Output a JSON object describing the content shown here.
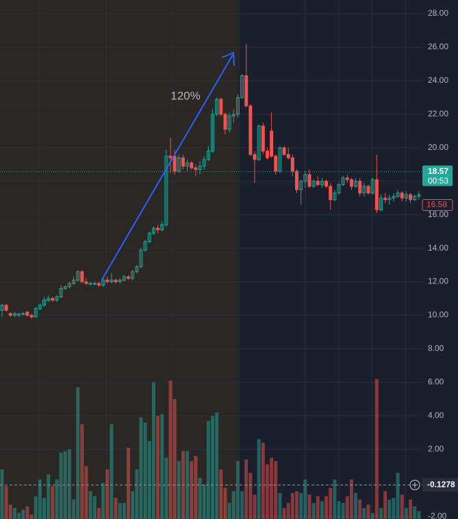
{
  "chart_data": {
    "type": "candlestick",
    "ylim": [
      -2.16,
      28.82
    ],
    "yticks": [
      {
        "value": -2,
        "label": "-2.00"
      },
      {
        "value": 2,
        "label": "2.00"
      },
      {
        "value": 4,
        "label": "4.00"
      },
      {
        "value": 6,
        "label": "6.00"
      },
      {
        "value": 8,
        "label": "8.00"
      },
      {
        "value": 10,
        "label": "10.00"
      },
      {
        "value": 12,
        "label": "12.00"
      },
      {
        "value": 14,
        "label": "14.00"
      },
      {
        "value": 16,
        "label": "16.00"
      },
      {
        "value": 18,
        "label": "18.00"
      },
      {
        "value": 20,
        "label": "20.00"
      },
      {
        "value": 22,
        "label": "22.00"
      },
      {
        "value": 24,
        "label": "24.00"
      },
      {
        "value": 26,
        "label": "26.00"
      },
      {
        "value": 28,
        "label": "28.00"
      }
    ],
    "up_color": "#26a69a",
    "down_color": "#ef5350",
    "open": [
      10.3,
      10.6,
      10.1,
      10.0,
      10.0,
      10.1,
      10.2,
      10.0,
      9.9,
      10.4,
      10.6,
      10.9,
      11.0,
      10.9,
      11.1,
      11.6,
      11.7,
      11.9,
      12.1,
      12.6,
      12.0,
      11.9,
      11.9,
      11.9,
      11.8,
      12.1,
      12.0,
      12.1,
      12.0,
      12.1,
      12.3,
      12.2,
      12.6,
      12.9,
      13.9,
      14.4,
      14.9,
      15.2,
      15.1,
      15.4,
      19.5,
      19.5,
      18.6,
      19.4,
      18.9,
      19.1,
      18.8,
      18.7,
      18.9,
      19.3,
      19.8,
      22.0,
      22.9,
      22.0,
      21.1,
      21.9,
      22.0,
      23.0,
      24.3,
      22.5,
      19.6,
      19.3,
      21.3,
      19.8,
      21.0,
      19.5,
      18.6,
      20.0,
      19.6,
      19.4,
      18.6,
      17.5,
      18.0,
      18.4,
      17.7,
      18.0,
      17.8,
      18.0,
      17.7,
      16.9,
      17.3,
      17.8,
      18.2,
      18.1,
      17.7,
      18.0,
      17.3,
      17.7,
      17.3,
      18.1,
      16.3,
      17.0,
      16.9,
      17.0,
      17.1,
      17.3,
      17.0,
      17.2,
      16.9,
      17.1
    ],
    "high": [
      10.7,
      10.7,
      10.2,
      10.2,
      10.1,
      10.2,
      10.2,
      10.1,
      10.5,
      10.7,
      11.1,
      11.2,
      11.1,
      11.2,
      11.8,
      11.8,
      12.0,
      12.3,
      12.7,
      12.7,
      12.2,
      12.0,
      12.0,
      12.0,
      12.2,
      12.3,
      12.5,
      12.2,
      12.2,
      12.4,
      12.4,
      12.7,
      13.0,
      14.0,
      14.5,
      15.0,
      15.3,
      15.4,
      15.6,
      19.9,
      20.6,
      19.9,
      19.6,
      19.6,
      19.3,
      19.2,
      19.0,
      19.2,
      19.5,
      20.1,
      22.3,
      23.0,
      23.0,
      22.1,
      22.1,
      22.3,
      23.2,
      24.4,
      26.2,
      22.6,
      19.8,
      21.4,
      21.5,
      20.0,
      22.1,
      19.6,
      20.1,
      20.1,
      20.0,
      19.6,
      18.7,
      18.1,
      18.6,
      18.7,
      18.1,
      18.3,
      18.2,
      18.1,
      17.9,
      17.5,
      17.9,
      18.3,
      18.4,
      18.2,
      18.2,
      18.2,
      17.9,
      17.8,
      18.2,
      19.6,
      17.2,
      17.3,
      17.2,
      17.3,
      17.5,
      17.4,
      17.4,
      17.3,
      17.2,
      17.4
    ],
    "low": [
      9.9,
      10.2,
      9.9,
      9.9,
      9.9,
      10.0,
      9.9,
      9.8,
      9.9,
      10.3,
      10.5,
      10.8,
      10.8,
      10.8,
      11.0,
      11.5,
      11.6,
      11.8,
      12.0,
      11.9,
      11.8,
      11.8,
      11.8,
      11.7,
      11.7,
      11.9,
      11.9,
      11.9,
      11.9,
      12.0,
      12.1,
      12.1,
      12.5,
      12.8,
      13.8,
      14.3,
      14.8,
      14.9,
      15.0,
      15.3,
      18.5,
      18.4,
      18.5,
      18.7,
      18.6,
      18.7,
      18.3,
      18.4,
      18.7,
      19.2,
      19.7,
      21.9,
      21.9,
      20.8,
      20.9,
      21.5,
      21.8,
      22.9,
      22.4,
      19.5,
      17.9,
      19.2,
      19.6,
      19.3,
      19.4,
      18.4,
      18.5,
      19.5,
      19.3,
      18.3,
      17.3,
      16.6,
      17.6,
      17.6,
      17.6,
      17.7,
      17.6,
      17.6,
      16.3,
      16.8,
      17.2,
      17.7,
      17.9,
      17.5,
      17.6,
      17.1,
      17.1,
      17.2,
      17.2,
      16.1,
      16.2,
      16.7,
      16.6,
      16.8,
      17.0,
      16.8,
      16.8,
      16.7,
      16.8,
      16.9
    ],
    "close": [
      10.6,
      10.3,
      10.0,
      10.1,
      10.1,
      10.1,
      10.0,
      9.9,
      10.4,
      10.6,
      10.9,
      11.0,
      10.9,
      11.1,
      11.6,
      11.7,
      11.9,
      12.1,
      12.6,
      12.0,
      11.9,
      11.9,
      11.9,
      11.8,
      12.1,
      12.0,
      12.1,
      12.0,
      12.1,
      12.3,
      12.2,
      12.6,
      12.9,
      13.9,
      14.4,
      14.9,
      15.2,
      15.1,
      15.4,
      19.5,
      19.4,
      18.6,
      19.4,
      18.9,
      19.1,
      18.8,
      18.7,
      18.9,
      19.3,
      19.8,
      22.0,
      22.9,
      22.0,
      21.1,
      21.9,
      22.0,
      23.0,
      24.3,
      22.5,
      19.6,
      19.3,
      21.3,
      19.8,
      19.4,
      19.5,
      18.6,
      20.0,
      19.6,
      19.4,
      18.6,
      17.5,
      18.0,
      18.4,
      17.7,
      18.0,
      17.8,
      18.0,
      17.7,
      16.9,
      17.3,
      17.8,
      18.2,
      18.1,
      17.7,
      18.0,
      17.3,
      17.7,
      17.3,
      18.1,
      16.3,
      17.0,
      16.9,
      17.0,
      17.1,
      17.3,
      17.0,
      17.2,
      16.9,
      17.1,
      17.2
    ],
    "volume": [
      0.8,
      -0.2,
      -1.3,
      -1.5,
      -1.8,
      -1.6,
      -1.4,
      -1.9,
      -0.8,
      0.2,
      -0.9,
      0.5,
      -0.2,
      0.2,
      1.8,
      1.9,
      2.0,
      -1.0,
      5.7,
      3.5,
      1.0,
      -0.5,
      -0.8,
      -1.5,
      0.0,
      0.8,
      3.5,
      -0.9,
      -1.2,
      -1.2,
      2.1,
      -0.5,
      0.8,
      3.9,
      3.6,
      2.5,
      6.0,
      4.0,
      4.1,
      1.5,
      6.1,
      5.0,
      1.3,
      1.9,
      1.9,
      1.3,
      1.6,
      0.3,
      -0.1,
      3.7,
      4.0,
      4.2,
      0.8,
      -0.3,
      -1.2,
      -0.5,
      1.3,
      -0.5,
      1.4,
      0.6,
      -0.7,
      2.6,
      2.4,
      1.1,
      1.5,
      1.3,
      -0.6,
      -1.5,
      -1.2,
      -0.6,
      -0.5,
      -0.6,
      0.2,
      -0.7,
      -1.2,
      -0.8,
      -1.1,
      -0.8,
      -0.3,
      0.2,
      -1.1,
      -1.2,
      -0.8,
      0.2,
      -0.6,
      -1.0,
      -1.5,
      -1.3,
      -1.8,
      6.2,
      -1.5,
      -0.5,
      -1.0,
      -0.9,
      0.6,
      -0.7,
      -1.5,
      -1.0,
      -1.4,
      -1.7
    ],
    "price_labels": [
      {
        "value": 18.57,
        "color": "#26a69a",
        "sub_label": "00:53"
      },
      {
        "value": 16.58,
        "color": "#ef5350"
      },
      {
        "value": -0.1278,
        "color": "#2a2e39"
      }
    ],
    "annotations": [
      {
        "text": "120%",
        "color": "#4caf50"
      }
    ]
  }
}
